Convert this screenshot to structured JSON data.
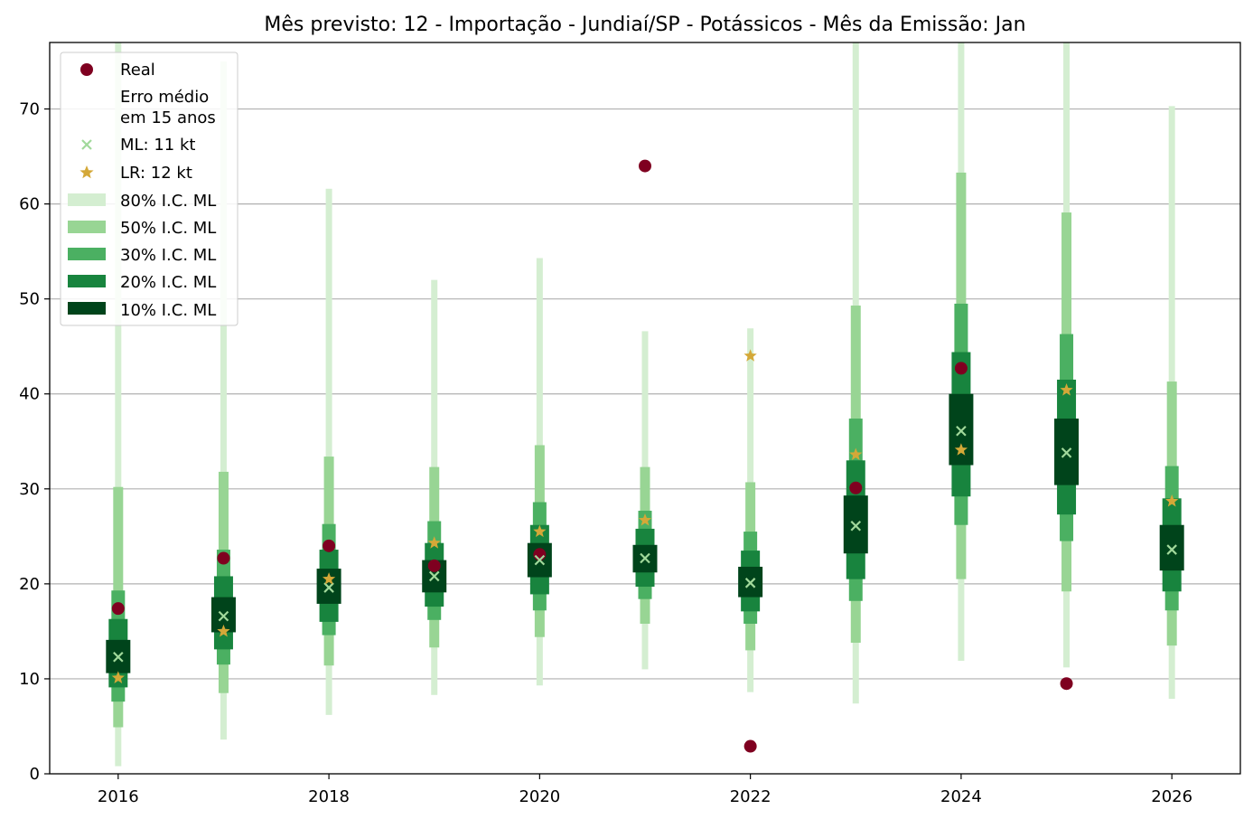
{
  "chart_data": {
    "type": "interval",
    "title": "Mês previsto: 12 - Importação - Jundiaí/SP - Potássicos - Mês da Emissão: Jan",
    "xlabel": "",
    "ylabel": "",
    "xlim": [
      2015.35,
      2026.65
    ],
    "ylim": [
      0,
      77
    ],
    "x_ticks": [
      2016,
      2018,
      2020,
      2022,
      2024,
      2026
    ],
    "y_ticks": [
      0,
      10,
      20,
      30,
      40,
      50,
      60,
      70
    ],
    "grid": "horizontal",
    "legend_position": "top-left",
    "legend": {
      "real": "Real",
      "error_line1": "Erro médio",
      "error_line2": "em 15 anos",
      "ml": "ML: 11 kt",
      "lr": "LR: 12 kt",
      "ci80": "80% I.C. ML",
      "ci50": "50% I.C. ML",
      "ci30": "30% I.C. ML",
      "ci20": "20% I.C. ML",
      "ci10": "10% I.C. ML"
    },
    "colors": {
      "real": "#7f0020",
      "ml": "#a1d99b",
      "lr": "#d4a838",
      "ci80": "#d4eed1",
      "ci50": "#98d594",
      "ci30": "#4bb062",
      "ci20": "#18843e",
      "ci10": "#00441b",
      "grid": "#b0b0b0"
    },
    "years": [
      2016,
      2017,
      2018,
      2019,
      2020,
      2021,
      2022,
      2023,
      2024,
      2025,
      2026
    ],
    "real": [
      17.4,
      22.7,
      24.0,
      21.9,
      23.1,
      64.0,
      2.9,
      30.1,
      42.7,
      9.5,
      null
    ],
    "ml": [
      12.3,
      16.6,
      19.6,
      20.8,
      22.5,
      22.7,
      20.1,
      26.1,
      36.1,
      33.8,
      23.6
    ],
    "lr": [
      10.1,
      15.0,
      20.5,
      24.3,
      25.5,
      26.7,
      44.0,
      33.6,
      34.1,
      40.4,
      28.7
    ],
    "intervals": {
      "ci80": [
        [
          0.8,
          77.0
        ],
        [
          3.6,
          75.0
        ],
        [
          6.2,
          61.6
        ],
        [
          8.3,
          52.0
        ],
        [
          9.3,
          54.3
        ],
        [
          11.0,
          46.6
        ],
        [
          8.6,
          46.9
        ],
        [
          7.4,
          77.0
        ],
        [
          11.9,
          77.0
        ],
        [
          11.2,
          77.0
        ],
        [
          7.9,
          70.3
        ]
      ],
      "ci50": [
        [
          4.9,
          30.2
        ],
        [
          8.5,
          31.8
        ],
        [
          11.4,
          33.4
        ],
        [
          13.3,
          32.3
        ],
        [
          14.4,
          34.6
        ],
        [
          15.8,
          32.3
        ],
        [
          13.0,
          30.7
        ],
        [
          13.8,
          49.3
        ],
        [
          20.5,
          63.3
        ],
        [
          19.2,
          59.1
        ],
        [
          13.5,
          41.3
        ]
      ],
      "ci30": [
        [
          7.6,
          19.3
        ],
        [
          11.5,
          23.6
        ],
        [
          14.6,
          26.3
        ],
        [
          16.2,
          26.6
        ],
        [
          17.2,
          28.6
        ],
        [
          18.4,
          27.7
        ],
        [
          15.8,
          25.5
        ],
        [
          18.2,
          37.4
        ],
        [
          26.2,
          49.5
        ],
        [
          24.5,
          46.3
        ],
        [
          17.2,
          32.4
        ]
      ],
      "ci20": [
        [
          9.1,
          16.3
        ],
        [
          13.1,
          20.8
        ],
        [
          16.0,
          23.6
        ],
        [
          17.6,
          24.3
        ],
        [
          18.9,
          26.2
        ],
        [
          19.7,
          25.8
        ],
        [
          17.1,
          23.5
        ],
        [
          20.5,
          33.0
        ],
        [
          29.2,
          44.4
        ],
        [
          27.3,
          41.5
        ],
        [
          19.2,
          29.0
        ]
      ],
      "ci10": [
        [
          10.6,
          14.1
        ],
        [
          14.9,
          18.6
        ],
        [
          17.9,
          21.6
        ],
        [
          19.1,
          22.5
        ],
        [
          20.7,
          24.3
        ],
        [
          21.2,
          24.1
        ],
        [
          18.6,
          21.8
        ],
        [
          23.2,
          29.3
        ],
        [
          32.5,
          40.0
        ],
        [
          30.4,
          37.4
        ],
        [
          21.4,
          26.2
        ]
      ]
    }
  }
}
